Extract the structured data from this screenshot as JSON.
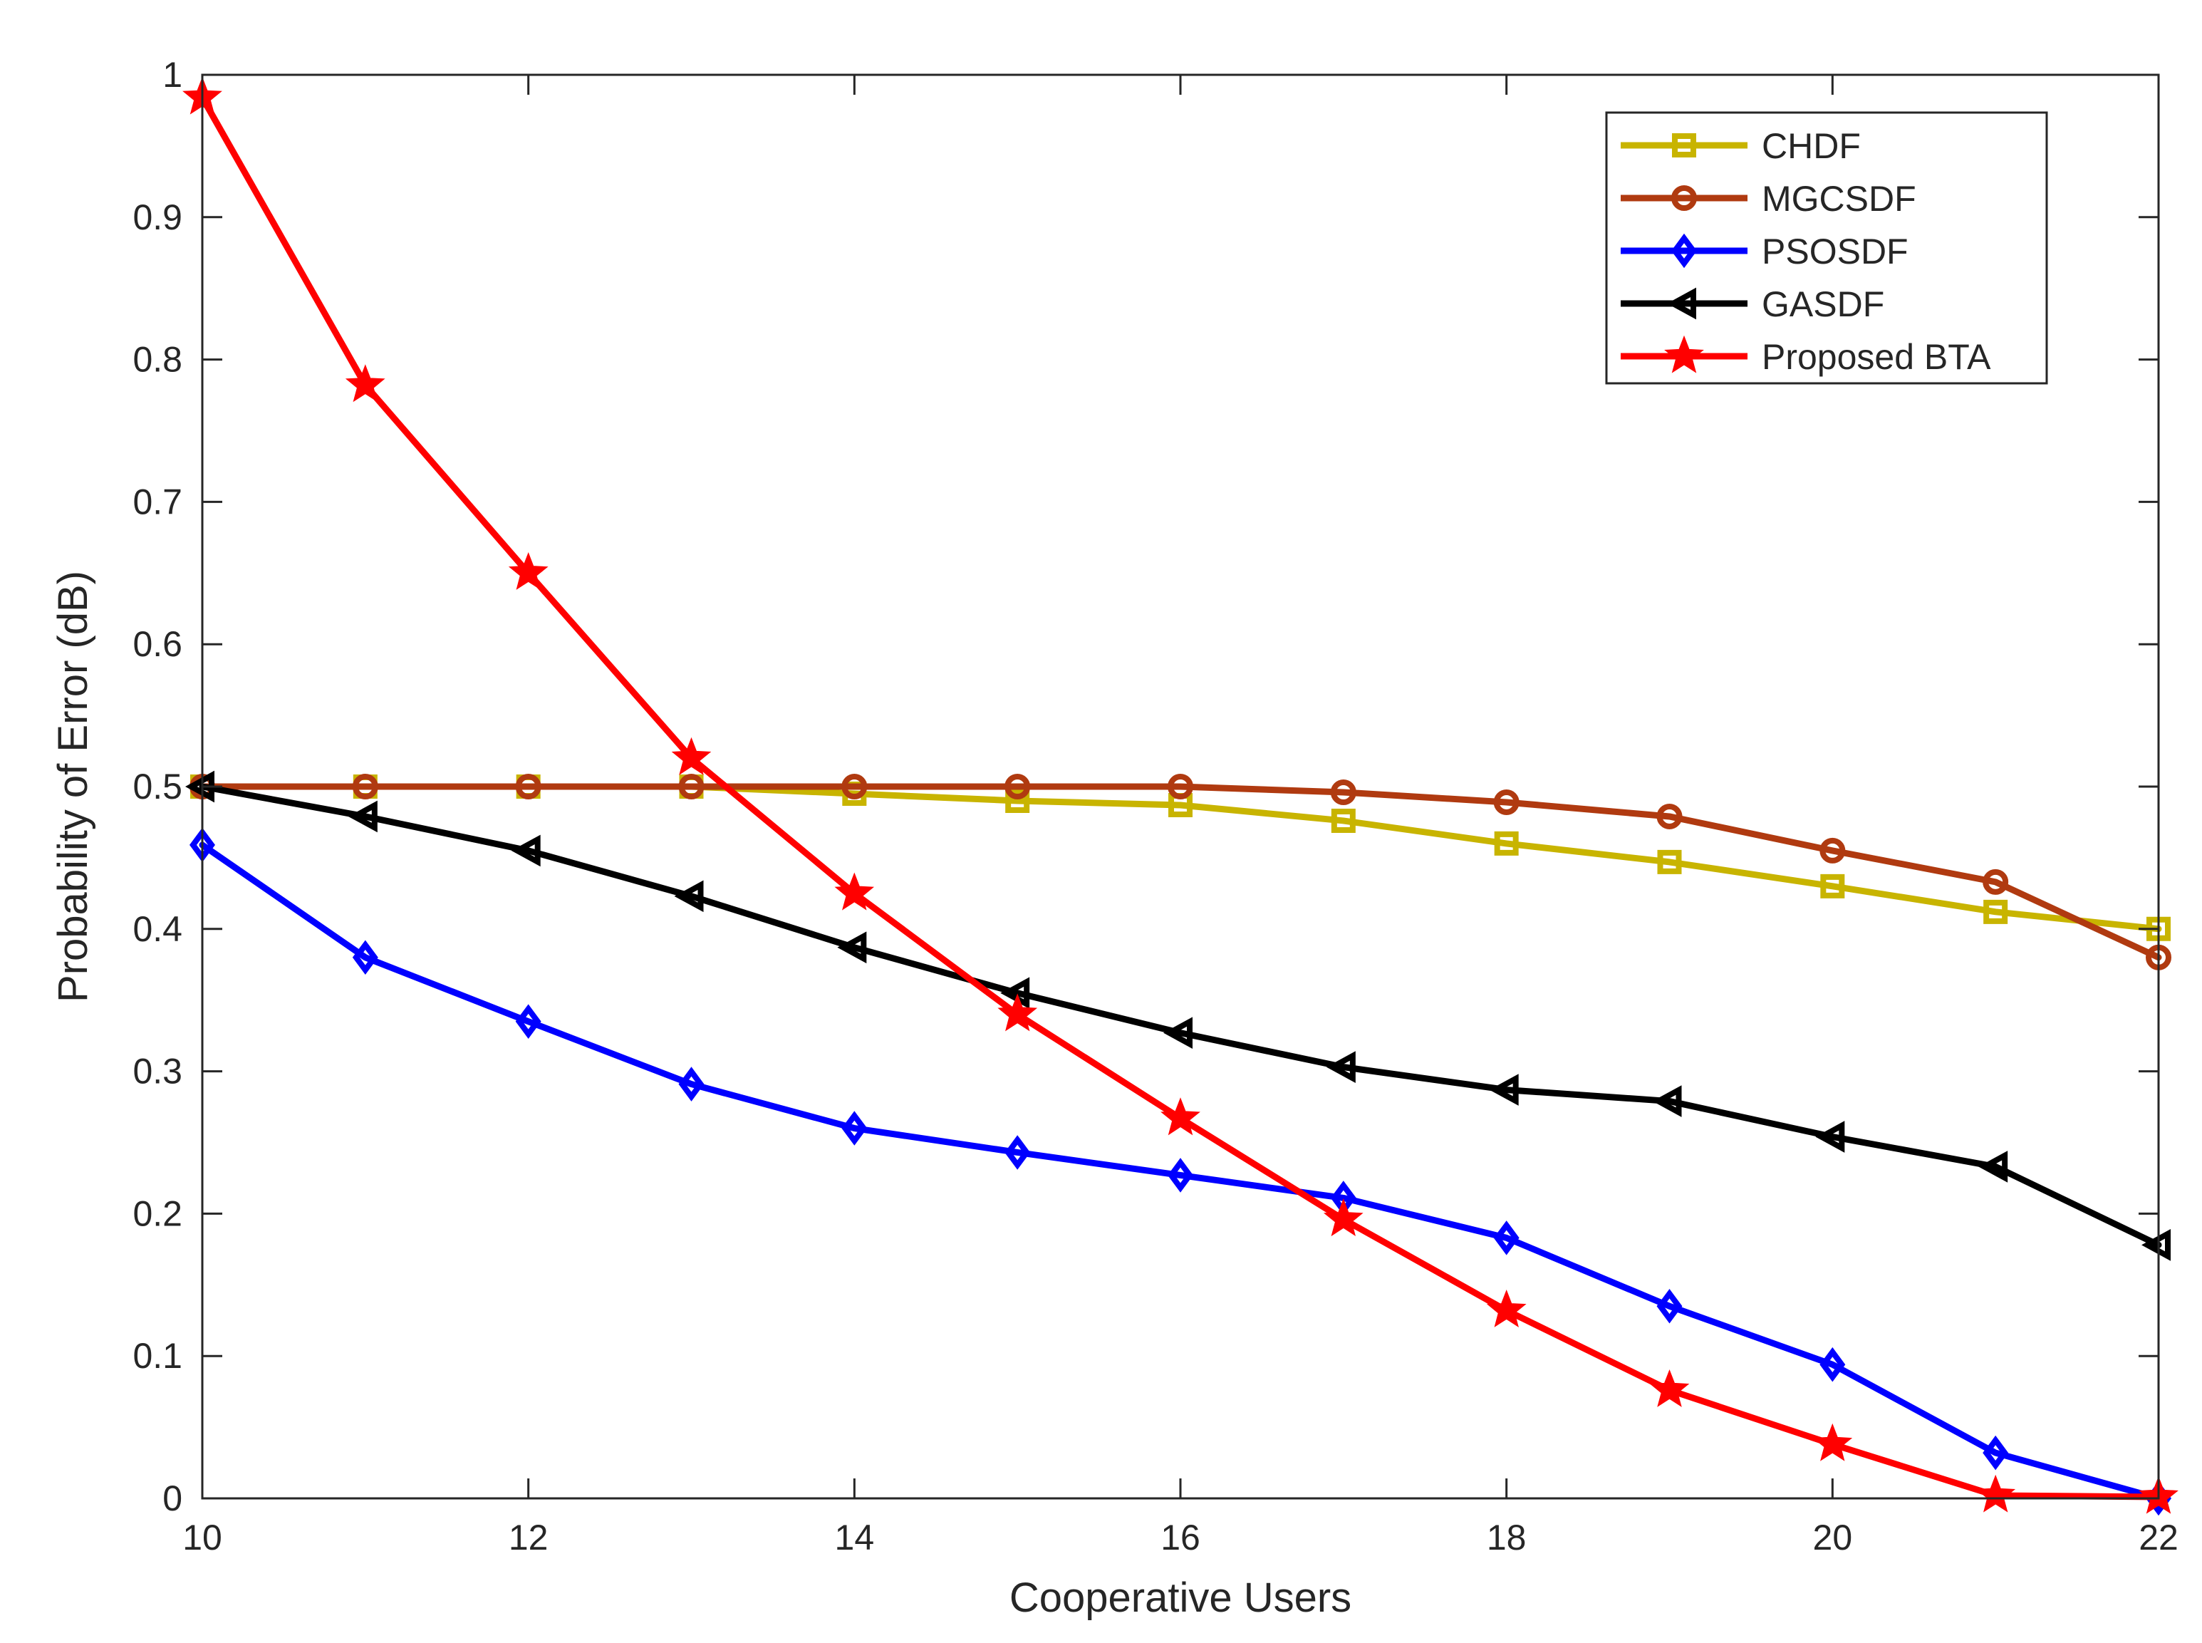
{
  "chart_data": {
    "type": "line",
    "title": "",
    "xlabel": "Cooperative Users",
    "ylabel": "Probability of Error (dB)",
    "xlim": [
      10,
      22
    ],
    "ylim": [
      0,
      1
    ],
    "xticks": [
      10,
      12,
      14,
      16,
      18,
      20,
      22
    ],
    "yticks": [
      0,
      0.1,
      0.2,
      0.3,
      0.4,
      0.5,
      0.6,
      0.7,
      0.8,
      0.9,
      1
    ],
    "xtick_labels": [
      "10",
      "12",
      "14",
      "16",
      "18",
      "20",
      "22"
    ],
    "ytick_labels": [
      "0",
      "0.1",
      "0.2",
      "0.3",
      "0.4",
      "0.5",
      "0.6",
      "0.7",
      "0.8",
      "0.9",
      "1"
    ],
    "grid": false,
    "legend_position": "top-right",
    "x": [
      10,
      11,
      12,
      13,
      14,
      15,
      16,
      17,
      18,
      19,
      20,
      21,
      22
    ],
    "series": [
      {
        "name": "CHDF",
        "color": "#c8b400",
        "marker": "square",
        "values": [
          0.5,
          0.5,
          0.5,
          0.5,
          0.495,
          0.49,
          0.487,
          0.476,
          0.46,
          0.447,
          0.43,
          0.412,
          0.4
        ]
      },
      {
        "name": "MGCSDF",
        "color": "#b03a10",
        "marker": "circle",
        "values": [
          0.5,
          0.5,
          0.5,
          0.5,
          0.5,
          0.5,
          0.5,
          0.496,
          0.489,
          0.479,
          0.455,
          0.433,
          0.38
        ]
      },
      {
        "name": "PSOSDF",
        "color": "#0000ff",
        "marker": "diamond",
        "values": [
          0.459,
          0.38,
          0.335,
          0.291,
          0.26,
          0.243,
          0.227,
          0.211,
          0.183,
          0.135,
          0.094,
          0.032,
          0.0
        ]
      },
      {
        "name": "GASDF",
        "color": "#000000",
        "marker": "triangle-left",
        "values": [
          0.5,
          0.479,
          0.455,
          0.423,
          0.387,
          0.355,
          0.327,
          0.303,
          0.287,
          0.279,
          0.254,
          0.233,
          0.178
        ]
      },
      {
        "name": "Proposed BTA",
        "color": "#ff0000",
        "marker": "star",
        "values": [
          0.984,
          0.782,
          0.65,
          0.52,
          0.425,
          0.34,
          0.267,
          0.196,
          0.132,
          0.076,
          0.038,
          0.002,
          0.001
        ]
      }
    ]
  }
}
